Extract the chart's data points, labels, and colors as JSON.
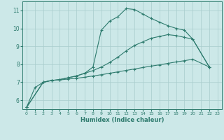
{
  "xlabel": "Humidex (Indice chaleur)",
  "bg_color": "#cce8e8",
  "line_color": "#2e7b6e",
  "grid_color": "#a8cccc",
  "xlim": [
    -0.5,
    23.5
  ],
  "ylim": [
    5.5,
    11.5
  ],
  "xticks": [
    0,
    1,
    2,
    3,
    4,
    5,
    6,
    7,
    8,
    9,
    10,
    11,
    12,
    13,
    14,
    15,
    16,
    17,
    18,
    19,
    20,
    21,
    22,
    23
  ],
  "yticks": [
    6,
    7,
    8,
    9,
    10,
    11
  ],
  "line1_x": [
    0,
    1,
    2,
    3,
    4,
    5,
    6,
    7,
    8,
    9,
    10,
    11,
    12,
    13,
    14,
    15,
    16,
    17,
    18,
    19,
    20,
    22
  ],
  "line1_y": [
    5.6,
    6.7,
    7.0,
    7.1,
    7.15,
    7.25,
    7.35,
    7.5,
    7.85,
    9.9,
    10.4,
    10.65,
    11.1,
    11.05,
    10.8,
    10.55,
    10.35,
    10.15,
    10.0,
    9.9,
    9.4,
    7.85
  ],
  "line2_x": [
    0,
    2,
    3,
    4,
    5,
    6,
    7,
    8,
    9,
    10,
    11,
    12,
    13,
    14,
    15,
    16,
    17,
    18,
    19,
    20,
    22
  ],
  "line2_y": [
    5.6,
    7.0,
    7.1,
    7.15,
    7.25,
    7.35,
    7.5,
    7.65,
    7.85,
    8.1,
    8.4,
    8.75,
    9.05,
    9.25,
    9.45,
    9.55,
    9.65,
    9.6,
    9.5,
    9.4,
    7.85
  ],
  "line3_x": [
    0,
    2,
    3,
    4,
    5,
    6,
    7,
    8,
    9,
    10,
    11,
    12,
    13,
    14,
    15,
    16,
    17,
    18,
    19,
    20,
    22
  ],
  "line3_y": [
    5.6,
    7.0,
    7.1,
    7.13,
    7.18,
    7.22,
    7.28,
    7.35,
    7.42,
    7.5,
    7.58,
    7.66,
    7.74,
    7.82,
    7.9,
    7.97,
    8.05,
    8.13,
    8.2,
    8.28,
    7.85
  ]
}
